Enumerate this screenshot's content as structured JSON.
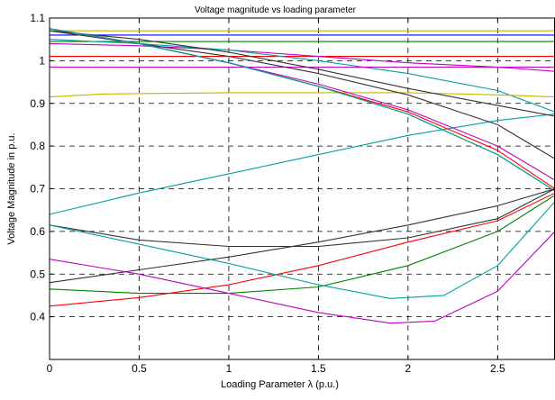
{
  "chart_data": {
    "type": "line",
    "title": "Voltage magnitude vs loading parameter",
    "xlabel": "Loading Parameter λ (p.u.)",
    "ylabel": "Voltage Magnitude in p.u.",
    "xlim": [
      0,
      2.82
    ],
    "ylim": [
      0.3,
      1.1
    ],
    "xticks": [
      0,
      0.5,
      1,
      1.5,
      2,
      2.5
    ],
    "yticks": [
      0.4,
      0.5,
      0.6,
      0.7,
      0.8,
      0.9,
      1,
      1.1
    ],
    "grid": true,
    "series": [
      {
        "color": "#0000ff",
        "points": [
          [
            0,
            1.06
          ],
          [
            2.82,
            1.06
          ]
        ]
      },
      {
        "color": "#c8b400",
        "points": [
          [
            0,
            1.07
          ],
          [
            2.82,
            1.07
          ]
        ]
      },
      {
        "color": "#008000",
        "points": [
          [
            0,
            1.045
          ],
          [
            2.82,
            1.045
          ]
        ]
      },
      {
        "color": "#ff0000",
        "points": [
          [
            0,
            1.01
          ],
          [
            2.82,
            1.01
          ]
        ]
      },
      {
        "color": "#c000c0",
        "points": [
          [
            0,
            1.04
          ],
          [
            0.5,
            1.035
          ],
          [
            1,
            1.025
          ],
          [
            1.5,
            1.01
          ],
          [
            2,
            0.995
          ],
          [
            2.5,
            0.985
          ],
          [
            2.82,
            0.975
          ]
        ]
      },
      {
        "color": "#00a0a0",
        "points": [
          [
            0,
            1.05
          ],
          [
            0.5,
            1.04
          ],
          [
            1,
            1.025
          ],
          [
            1.5,
            1.0
          ],
          [
            2,
            0.97
          ],
          [
            2.5,
            0.93
          ],
          [
            2.82,
            0.88
          ]
        ]
      },
      {
        "color": "#c8b400",
        "points": [
          [
            0,
            0.915
          ],
          [
            0.3,
            0.922
          ],
          [
            1,
            0.925
          ],
          [
            1.5,
            0.925
          ],
          [
            2,
            0.925
          ],
          [
            2.5,
            0.92
          ],
          [
            2.82,
            0.915
          ]
        ]
      },
      {
        "color": "#c000c0",
        "points": [
          [
            0,
            0.985
          ],
          [
            2.82,
            0.985
          ]
        ]
      },
      {
        "color": "#00a0a0",
        "points": [
          [
            0,
            0.64
          ],
          [
            0.5,
            0.69
          ],
          [
            1,
            0.735
          ],
          [
            1.5,
            0.78
          ],
          [
            2,
            0.825
          ],
          [
            2.5,
            0.86
          ],
          [
            2.82,
            0.875
          ]
        ]
      },
      {
        "color": "#333333",
        "points": [
          [
            0,
            1.07
          ],
          [
            0.5,
            1.04
          ],
          [
            1,
            1.01
          ],
          [
            1.5,
            0.97
          ],
          [
            2,
            0.92
          ],
          [
            2.5,
            0.85
          ],
          [
            2.82,
            0.77
          ]
        ]
      },
      {
        "color": "#333333",
        "points": [
          [
            0,
            1.07
          ],
          [
            0.5,
            1.05
          ],
          [
            1,
            1.02
          ],
          [
            1.5,
            0.98
          ],
          [
            2,
            0.935
          ],
          [
            2.5,
            0.895
          ],
          [
            2.82,
            0.87
          ]
        ]
      },
      {
        "color": "#ff0000",
        "points": [
          [
            0,
            1.075
          ],
          [
            0.5,
            1.04
          ],
          [
            1,
            0.995
          ],
          [
            1.5,
            0.94
          ],
          [
            2,
            0.88
          ],
          [
            2.5,
            0.79
          ],
          [
            2.82,
            0.7
          ]
        ]
      },
      {
        "color": "#008000",
        "points": [
          [
            0,
            1.075
          ],
          [
            0.5,
            1.04
          ],
          [
            1,
            0.995
          ],
          [
            1.5,
            0.94
          ],
          [
            2,
            0.875
          ],
          [
            2.5,
            0.78
          ],
          [
            2.82,
            0.695
          ]
        ]
      },
      {
        "color": "#c000c0",
        "points": [
          [
            0,
            1.075
          ],
          [
            0.5,
            1.04
          ],
          [
            1,
            0.995
          ],
          [
            1.5,
            0.945
          ],
          [
            2,
            0.885
          ],
          [
            2.5,
            0.8
          ],
          [
            2.82,
            0.72
          ]
        ]
      },
      {
        "color": "#00a0a0",
        "points": [
          [
            0,
            1.075
          ],
          [
            0.5,
            1.04
          ],
          [
            1,
            0.995
          ],
          [
            1.5,
            0.94
          ],
          [
            2,
            0.875
          ],
          [
            2.5,
            0.78
          ],
          [
            2.82,
            0.695
          ]
        ]
      },
      {
        "color": "#333333",
        "points": [
          [
            0,
            0.615
          ],
          [
            0.5,
            0.58
          ],
          [
            1,
            0.565
          ],
          [
            1.5,
            0.565
          ],
          [
            2,
            0.585
          ],
          [
            2.5,
            0.63
          ],
          [
            2.82,
            0.7
          ]
        ]
      },
      {
        "color": "#333333",
        "points": [
          [
            0,
            0.48
          ],
          [
            0.5,
            0.51
          ],
          [
            1,
            0.54
          ],
          [
            1.5,
            0.575
          ],
          [
            2,
            0.615
          ],
          [
            2.5,
            0.66
          ],
          [
            2.82,
            0.7
          ]
        ]
      },
      {
        "color": "#ff0000",
        "points": [
          [
            0,
            0.425
          ],
          [
            0.5,
            0.445
          ],
          [
            1,
            0.475
          ],
          [
            1.5,
            0.52
          ],
          [
            2,
            0.575
          ],
          [
            2.5,
            0.625
          ],
          [
            2.82,
            0.69
          ]
        ]
      },
      {
        "color": "#008000",
        "points": [
          [
            0,
            0.465
          ],
          [
            0.5,
            0.455
          ],
          [
            1,
            0.455
          ],
          [
            1.5,
            0.47
          ],
          [
            2,
            0.52
          ],
          [
            2.5,
            0.6
          ],
          [
            2.82,
            0.685
          ]
        ]
      },
      {
        "color": "#00a0a0",
        "points": [
          [
            0,
            0.615
          ],
          [
            0.5,
            0.57
          ],
          [
            1,
            0.525
          ],
          [
            1.5,
            0.475
          ],
          [
            1.9,
            0.443
          ],
          [
            2.2,
            0.45
          ],
          [
            2.5,
            0.52
          ],
          [
            2.82,
            0.67
          ]
        ]
      },
      {
        "color": "#c000c0",
        "points": [
          [
            0,
            0.535
          ],
          [
            0.5,
            0.5
          ],
          [
            1,
            0.455
          ],
          [
            1.5,
            0.41
          ],
          [
            1.9,
            0.385
          ],
          [
            2.15,
            0.39
          ],
          [
            2.5,
            0.46
          ],
          [
            2.82,
            0.6
          ]
        ]
      }
    ]
  }
}
